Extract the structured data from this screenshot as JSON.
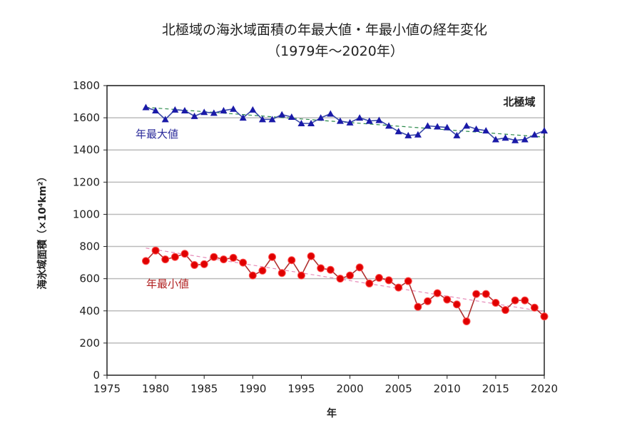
{
  "chart_data": {
    "type": "line",
    "title": "北極域の海氷域面積の年最大値・年最小値の経年変化",
    "subtitle": "（1979年～2020年）",
    "xlabel": "年",
    "ylabel": "海氷域面積（×10⁴km²）",
    "region_label": "北極域",
    "xlim": [
      1975,
      2020
    ],
    "ylim": [
      0,
      1800
    ],
    "xticks": [
      1975,
      1980,
      1985,
      1990,
      1995,
      2000,
      2005,
      2010,
      2015,
      2020
    ],
    "yticks": [
      0,
      200,
      400,
      600,
      800,
      1000,
      1200,
      1400,
      1600,
      1800
    ],
    "grid": "horizontal",
    "x": [
      1979,
      1980,
      1981,
      1982,
      1983,
      1984,
      1985,
      1986,
      1987,
      1988,
      1989,
      1990,
      1991,
      1992,
      1993,
      1994,
      1995,
      1996,
      1997,
      1998,
      1999,
      2000,
      2001,
      2002,
      2003,
      2004,
      2005,
      2006,
      2007,
      2008,
      2009,
      2010,
      2011,
      2012,
      2013,
      2014,
      2015,
      2016,
      2017,
      2018,
      2019,
      2020
    ],
    "series": [
      {
        "name": "年最大値",
        "color": "#1a1aa8",
        "marker": "triangle",
        "values": [
          1665,
          1645,
          1590,
          1650,
          1645,
          1610,
          1635,
          1630,
          1645,
          1655,
          1600,
          1650,
          1590,
          1590,
          1620,
          1605,
          1565,
          1565,
          1600,
          1625,
          1580,
          1570,
          1600,
          1580,
          1585,
          1550,
          1515,
          1490,
          1495,
          1550,
          1545,
          1540,
          1490,
          1550,
          1530,
          1520,
          1465,
          1475,
          1460,
          1465,
          1495,
          1520
        ],
        "trend": [
          1665,
          1480
        ]
      },
      {
        "name": "年最小値",
        "color": "#e00000",
        "marker": "circle",
        "values": [
          710,
          775,
          720,
          735,
          755,
          685,
          690,
          735,
          720,
          730,
          700,
          620,
          650,
          735,
          635,
          715,
          620,
          740,
          665,
          655,
          600,
          620,
          670,
          570,
          605,
          590,
          545,
          585,
          425,
          460,
          510,
          470,
          440,
          335,
          505,
          505,
          450,
          405,
          465,
          465,
          420,
          365
        ],
        "trend": [
          790,
          395
        ]
      }
    ]
  }
}
